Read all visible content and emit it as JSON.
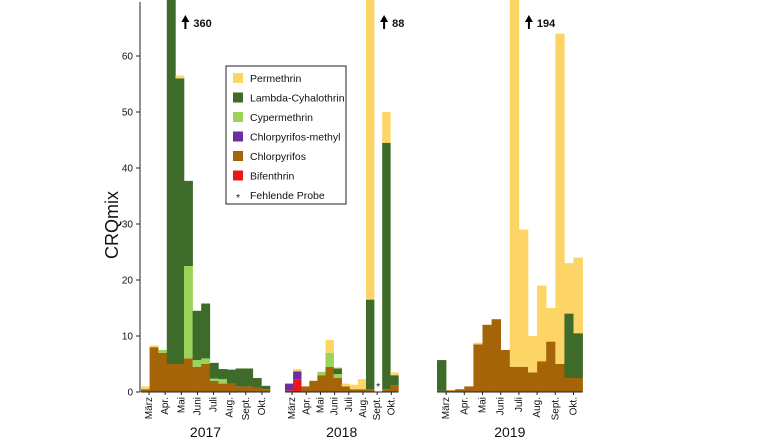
{
  "chart_data": {
    "type": "bar",
    "stacked": true,
    "ylabel": "CRQmix",
    "ylim": [
      0,
      70
    ],
    "yticks": [
      0,
      10,
      20,
      30,
      40,
      50,
      60
    ],
    "grid": false,
    "legend_position": "top-center",
    "colors": {
      "Permethrin": "#FDD466",
      "Lambda-Cyhalothrin": "#3E6A2A",
      "Cypermethrin": "#9AD35A",
      "Chlorpyrifos-methyl": "#6B2FA0",
      "Chlorpyrifos": "#A66408",
      "Bifenthrin": "#E81818"
    },
    "legend": [
      {
        "name": "Permethrin",
        "type": "swatch"
      },
      {
        "name": "Lambda-Cyhalothrin",
        "type": "swatch"
      },
      {
        "name": "Cypermethrin",
        "type": "swatch"
      },
      {
        "name": "Chlorpyrifos-methyl",
        "type": "swatch"
      },
      {
        "name": "Chlorpyrifos",
        "type": "swatch"
      },
      {
        "name": "Bifenthrin",
        "type": "swatch"
      },
      {
        "name": "Fehlende Probe",
        "type": "star",
        "symbol": "*"
      }
    ],
    "years": [
      {
        "year": "2017",
        "months": [
          "März",
          "Apr.",
          "Mai",
          "Juni",
          "Juli",
          "Aug.",
          "Sept.",
          "Okt."
        ],
        "bars": [
          {
            "Chlorpyrifos": 0.5,
            "Permethrin": 0.5
          },
          {
            "Chlorpyrifos": 8.0,
            "Permethrin": 0.3
          },
          {
            "Chlorpyrifos": 7.0,
            "Cypermethrin": 0.5
          },
          {
            "Chlorpyrifos": 5.0,
            "Lambda-Cyhalothrin": 355,
            "Permethrin": 0.3
          },
          {
            "Chlorpyrifos": 5.0,
            "Lambda-Cyhalothrin": 51,
            "Permethrin": 0.5
          },
          {
            "Chlorpyrifos": 6.0,
            "Cypermethrin": 16.5,
            "Lambda-Cyhalothrin": 15.2
          },
          {
            "Chlorpyrifos": 4.5,
            "Cypermethrin": 1.2,
            "Lambda-Cyhalothrin": 8.8
          },
          {
            "Chlorpyrifos": 5.0,
            "Cypermethrin": 1.0,
            "Lambda-Cyhalothrin": 9.8
          },
          {
            "Chlorpyrifos": 2.0,
            "Cypermethrin": 0.4,
            "Lambda-Cyhalothrin": 2.8
          },
          {
            "Chlorpyrifos": 1.5,
            "Cypermethrin": 0.8,
            "Lambda-Cyhalothrin": 1.8
          },
          {
            "Chlorpyrifos": 1.5,
            "Lambda-Cyhalothrin": 2.5
          },
          {
            "Chlorpyrifos": 1.0,
            "Lambda-Cyhalothrin": 3.2
          },
          {
            "Chlorpyrifos": 1.0,
            "Lambda-Cyhalothrin": 3.2
          },
          {
            "Chlorpyrifos": 0.8,
            "Lambda-Cyhalothrin": 1.7
          },
          {
            "Chlorpyrifos": 0.5,
            "Lambda-Cyhalothrin": 0.6
          }
        ],
        "overflow": [
          {
            "bar": 3,
            "label": "360"
          }
        ]
      },
      {
        "year": "2018",
        "months": [
          "März",
          "Apr.",
          "Mai",
          "Juni",
          "Juli",
          "Aug.",
          "Sept.",
          "Okt."
        ],
        "bars": [
          {
            "Bifenthrin": 0.3,
            "Chlorpyrifos-methyl": 1.2
          },
          {
            "Bifenthrin": 2.3,
            "Chlorpyrifos-methyl": 1.4,
            "Permethrin": 0.4
          },
          {
            "Chlorpyrifos": 1.0
          },
          {
            "Chlorpyrifos": 2.0
          },
          {
            "Chlorpyrifos": 3.0,
            "Cypermethrin": 0.6
          },
          {
            "Chlorpyrifos": 4.5,
            "Cypermethrin": 2.5,
            "Permethrin": 2.3
          },
          {
            "Chlorpyrifos": 2.5,
            "Cypermethrin": 0.7,
            "Lambda-Cyhalothrin": 1.0,
            "Permethrin": 0.2
          },
          {
            "Chlorpyrifos": 1.0,
            "Permethrin": 0.5
          },
          {
            "Chlorpyrifos": 0.5,
            "Permethrin": 0.8
          },
          {
            "Chlorpyrifos": 0.5,
            "Permethrin": 1.8
          },
          {
            "Chlorpyrifos": 0.5,
            "Lambda-Cyhalothrin": 16.0,
            "Permethrin": 71.5
          },
          null,
          {
            "Chlorpyrifos": 0.5,
            "Lambda-Cyhalothrin": 44.0,
            "Permethrin": 5.5
          },
          {
            "Chlorpyrifos": 1.2,
            "Lambda-Cyhalothrin": 1.8,
            "Permethrin": 0.5
          }
        ],
        "missing": [
          11
        ],
        "overflow": [
          {
            "bar": 10,
            "label": "88"
          }
        ]
      },
      {
        "year": "2019",
        "months": [
          "März",
          "Apr.",
          "Mai",
          "Juni",
          "Juli",
          "Aug.",
          "Sept.",
          "Okt."
        ],
        "bars": [
          {
            "Lambda-Cyhalothrin": 5.5,
            "Chlorpyrifos": 0.2
          },
          {
            "Chlorpyrifos": 0.3
          },
          {
            "Chlorpyrifos": 0.5
          },
          {
            "Chlorpyrifos": 1.0
          },
          {
            "Chlorpyrifos": 8.5,
            "Permethrin": 0.3
          },
          {
            "Chlorpyrifos": 12.0
          },
          {
            "Chlorpyrifos": 13.0
          },
          {
            "Chlorpyrifos": 7.5
          },
          {
            "Chlorpyrifos": 4.5,
            "Permethrin": 189.5
          },
          {
            "Chlorpyrifos": 4.5,
            "Permethrin": 24.5
          },
          {
            "Chlorpyrifos": 3.5,
            "Permethrin": 6.5
          },
          {
            "Chlorpyrifos": 5.5,
            "Permethrin": 13.5
          },
          {
            "Chlorpyrifos": 9.0,
            "Permethrin": 6.0
          },
          {
            "Chlorpyrifos": 5.0,
            "Permethrin": 59.0
          },
          {
            "Chlorpyrifos": 2.5,
            "Lambda-Cyhalothrin": 11.5,
            "Permethrin": 9.0
          },
          {
            "Chlorpyrifos": 2.5,
            "Lambda-Cyhalothrin": 8.0,
            "Permethrin": 13.5
          }
        ],
        "overflow": [
          {
            "bar": 8,
            "label": "194"
          }
        ]
      }
    ]
  }
}
